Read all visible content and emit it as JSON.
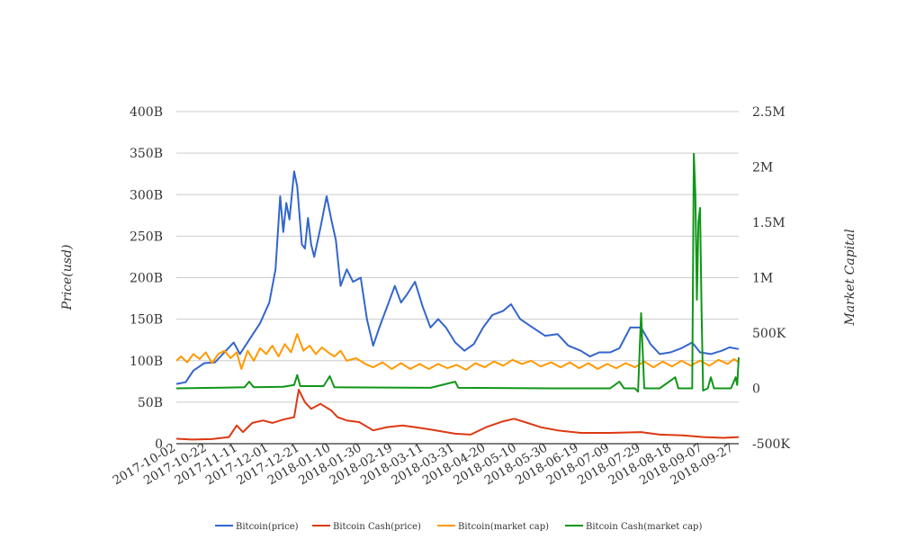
{
  "chart_data": {
    "type": "line",
    "ylabel_left": "Price(usd)",
    "ylabel_right": "Market Capital",
    "left_axis": {
      "range": [
        0,
        400000000000
      ],
      "ticks": [
        0,
        50000000000,
        100000000000,
        150000000000,
        200000000000,
        250000000000,
        300000000000,
        350000000000,
        400000000000
      ],
      "tick_labels": [
        "0",
        "50B",
        "100B",
        "150B",
        "200B",
        "250B",
        "300B",
        "350B",
        "400B"
      ]
    },
    "right_axis": {
      "range": [
        -500000,
        2500000
      ],
      "ticks": [
        -500000,
        0,
        500000,
        1000000,
        1500000,
        2000000,
        2500000
      ],
      "tick_labels": [
        "-500K",
        "0",
        "500K",
        "1M",
        "1.5M",
        "2M",
        "2.5M"
      ]
    },
    "x_tick_labels": [
      "2017-10-02",
      "2017-10-22",
      "2017-11-11",
      "2017-12-01",
      "2017-12-21",
      "2018-01-10",
      "2018-01-30",
      "2018-02-19",
      "2018-03-11",
      "2018-03-31",
      "2018-04-20",
      "2018-05-10",
      "2018-05-30",
      "2018-06-19",
      "2018-07-09",
      "2018-07-29",
      "2018-08-18",
      "2018-09-07",
      "2018-09-27"
    ],
    "x_range": [
      "2017-10-02",
      "2018-09-30"
    ],
    "grid": true,
    "legend_position": "bottom",
    "series": [
      {
        "name": "Bitcoin(price)",
        "color": "#3366cc",
        "axis": "left",
        "points": [
          [
            "2017-10-02",
            72000000000
          ],
          [
            "2017-10-08",
            74000000000
          ],
          [
            "2017-10-13",
            88000000000
          ],
          [
            "2017-10-20",
            97000000000
          ],
          [
            "2017-10-27",
            98000000000
          ],
          [
            "2017-11-02",
            110000000000
          ],
          [
            "2017-11-08",
            122000000000
          ],
          [
            "2017-11-12",
            108000000000
          ],
          [
            "2017-11-18",
            125000000000
          ],
          [
            "2017-11-25",
            145000000000
          ],
          [
            "2017-12-01",
            170000000000
          ],
          [
            "2017-12-05",
            210000000000
          ],
          [
            "2017-12-08",
            298000000000
          ],
          [
            "2017-12-10",
            255000000000
          ],
          [
            "2017-12-12",
            290000000000
          ],
          [
            "2017-12-14",
            270000000000
          ],
          [
            "2017-12-17",
            328000000000
          ],
          [
            "2017-12-19",
            310000000000
          ],
          [
            "2017-12-22",
            240000000000
          ],
          [
            "2017-12-24",
            235000000000
          ],
          [
            "2017-12-26",
            272000000000
          ],
          [
            "2017-12-28",
            240000000000
          ],
          [
            "2017-12-30",
            225000000000
          ],
          [
            "2018-01-03",
            260000000000
          ],
          [
            "2018-01-07",
            298000000000
          ],
          [
            "2018-01-10",
            270000000000
          ],
          [
            "2018-01-13",
            245000000000
          ],
          [
            "2018-01-16",
            190000000000
          ],
          [
            "2018-01-20",
            210000000000
          ],
          [
            "2018-01-24",
            195000000000
          ],
          [
            "2018-01-29",
            200000000000
          ],
          [
            "2018-02-02",
            150000000000
          ],
          [
            "2018-02-06",
            118000000000
          ],
          [
            "2018-02-10",
            140000000000
          ],
          [
            "2018-02-15",
            165000000000
          ],
          [
            "2018-02-20",
            190000000000
          ],
          [
            "2018-02-24",
            170000000000
          ],
          [
            "2018-02-28",
            180000000000
          ],
          [
            "2018-03-05",
            195000000000
          ],
          [
            "2018-03-10",
            165000000000
          ],
          [
            "2018-03-15",
            140000000000
          ],
          [
            "2018-03-20",
            150000000000
          ],
          [
            "2018-03-25",
            140000000000
          ],
          [
            "2018-03-31",
            122000000000
          ],
          [
            "2018-04-06",
            112000000000
          ],
          [
            "2018-04-12",
            120000000000
          ],
          [
            "2018-04-18",
            140000000000
          ],
          [
            "2018-04-24",
            155000000000
          ],
          [
            "2018-05-01",
            160000000000
          ],
          [
            "2018-05-06",
            168000000000
          ],
          [
            "2018-05-12",
            150000000000
          ],
          [
            "2018-05-20",
            140000000000
          ],
          [
            "2018-05-28",
            130000000000
          ],
          [
            "2018-06-05",
            132000000000
          ],
          [
            "2018-06-12",
            118000000000
          ],
          [
            "2018-06-20",
            112000000000
          ],
          [
            "2018-06-26",
            105000000000
          ],
          [
            "2018-07-02",
            110000000000
          ],
          [
            "2018-07-09",
            110000000000
          ],
          [
            "2018-07-15",
            115000000000
          ],
          [
            "2018-07-22",
            140000000000
          ],
          [
            "2018-07-29",
            140000000000
          ],
          [
            "2018-08-04",
            120000000000
          ],
          [
            "2018-08-10",
            108000000000
          ],
          [
            "2018-08-17",
            110000000000
          ],
          [
            "2018-08-24",
            115000000000
          ],
          [
            "2018-08-31",
            122000000000
          ],
          [
            "2018-09-05",
            110000000000
          ],
          [
            "2018-09-12",
            108000000000
          ],
          [
            "2018-09-19",
            112000000000
          ],
          [
            "2018-09-24",
            116000000000
          ],
          [
            "2018-09-30",
            114000000000
          ]
        ]
      },
      {
        "name": "Bitcoin Cash(price)",
        "color": "#dc3912",
        "axis": "left",
        "points": [
          [
            "2017-10-02",
            6000000000
          ],
          [
            "2017-10-12",
            5000000000
          ],
          [
            "2017-10-25",
            5500000000
          ],
          [
            "2017-11-05",
            8000000000
          ],
          [
            "2017-11-10",
            22000000000
          ],
          [
            "2017-11-14",
            14000000000
          ],
          [
            "2017-11-20",
            25000000000
          ],
          [
            "2017-11-27",
            28000000000
          ],
          [
            "2017-12-03",
            25000000000
          ],
          [
            "2017-12-10",
            29000000000
          ],
          [
            "2017-12-17",
            32000000000
          ],
          [
            "2017-12-20",
            65000000000
          ],
          [
            "2017-12-24",
            50000000000
          ],
          [
            "2017-12-28",
            42000000000
          ],
          [
            "2018-01-03",
            48000000000
          ],
          [
            "2018-01-10",
            40000000000
          ],
          [
            "2018-01-14",
            32000000000
          ],
          [
            "2018-01-20",
            28000000000
          ],
          [
            "2018-01-28",
            26000000000
          ],
          [
            "2018-02-06",
            16000000000
          ],
          [
            "2018-02-15",
            20000000000
          ],
          [
            "2018-02-25",
            22000000000
          ],
          [
            "2018-03-05",
            20000000000
          ],
          [
            "2018-03-15",
            17000000000
          ],
          [
            "2018-03-31",
            12000000000
          ],
          [
            "2018-04-10",
            11000000000
          ],
          [
            "2018-04-20",
            20000000000
          ],
          [
            "2018-05-01",
            27000000000
          ],
          [
            "2018-05-08",
            30000000000
          ],
          [
            "2018-05-15",
            26000000000
          ],
          [
            "2018-05-25",
            20000000000
          ],
          [
            "2018-06-05",
            16000000000
          ],
          [
            "2018-06-20",
            13000000000
          ],
          [
            "2018-07-09",
            13000000000
          ],
          [
            "2018-07-29",
            14000000000
          ],
          [
            "2018-08-10",
            11000000000
          ],
          [
            "2018-08-25",
            10000000000
          ],
          [
            "2018-09-07",
            8000000000
          ],
          [
            "2018-09-20",
            7000000000
          ],
          [
            "2018-09-30",
            8000000000
          ]
        ]
      },
      {
        "name": "Bitcoin(market cap)",
        "color": "#ff9900",
        "axis": "left",
        "points": [
          [
            "2017-10-02",
            100000000000
          ],
          [
            "2017-10-05",
            105000000000
          ],
          [
            "2017-10-09",
            98000000000
          ],
          [
            "2017-10-13",
            108000000000
          ],
          [
            "2017-10-17",
            102000000000
          ],
          [
            "2017-10-21",
            110000000000
          ],
          [
            "2017-10-25",
            97000000000
          ],
          [
            "2017-10-29",
            108000000000
          ],
          [
            "2017-11-02",
            112000000000
          ],
          [
            "2017-11-06",
            103000000000
          ],
          [
            "2017-11-10",
            110000000000
          ],
          [
            "2017-11-13",
            90000000000
          ],
          [
            "2017-11-17",
            112000000000
          ],
          [
            "2017-11-21",
            100000000000
          ],
          [
            "2017-11-25",
            115000000000
          ],
          [
            "2017-11-29",
            108000000000
          ],
          [
            "2017-12-03",
            118000000000
          ],
          [
            "2017-12-07",
            105000000000
          ],
          [
            "2017-12-11",
            120000000000
          ],
          [
            "2017-12-15",
            110000000000
          ],
          [
            "2017-12-19",
            132000000000
          ],
          [
            "2017-12-23",
            112000000000
          ],
          [
            "2017-12-27",
            118000000000
          ],
          [
            "2017-12-31",
            108000000000
          ],
          [
            "2018-01-04",
            116000000000
          ],
          [
            "2018-01-08",
            110000000000
          ],
          [
            "2018-01-12",
            105000000000
          ],
          [
            "2018-01-16",
            112000000000
          ],
          [
            "2018-01-20",
            100000000000
          ],
          [
            "2018-01-26",
            103000000000
          ],
          [
            "2018-02-01",
            96000000000
          ],
          [
            "2018-02-06",
            92000000000
          ],
          [
            "2018-02-12",
            98000000000
          ],
          [
            "2018-02-18",
            90000000000
          ],
          [
            "2018-02-24",
            97000000000
          ],
          [
            "2018-03-02",
            90000000000
          ],
          [
            "2018-03-08",
            96000000000
          ],
          [
            "2018-03-14",
            90000000000
          ],
          [
            "2018-03-20",
            96000000000
          ],
          [
            "2018-03-26",
            91000000000
          ],
          [
            "2018-04-01",
            95000000000
          ],
          [
            "2018-04-07",
            89000000000
          ],
          [
            "2018-04-13",
            97000000000
          ],
          [
            "2018-04-19",
            92000000000
          ],
          [
            "2018-04-25",
            99000000000
          ],
          [
            "2018-05-01",
            94000000000
          ],
          [
            "2018-05-07",
            101000000000
          ],
          [
            "2018-05-13",
            96000000000
          ],
          [
            "2018-05-19",
            100000000000
          ],
          [
            "2018-05-25",
            93000000000
          ],
          [
            "2018-06-01",
            98000000000
          ],
          [
            "2018-06-07",
            92000000000
          ],
          [
            "2018-06-13",
            98000000000
          ],
          [
            "2018-06-19",
            91000000000
          ],
          [
            "2018-06-25",
            97000000000
          ],
          [
            "2018-07-01",
            90000000000
          ],
          [
            "2018-07-07",
            96000000000
          ],
          [
            "2018-07-13",
            91000000000
          ],
          [
            "2018-07-19",
            97000000000
          ],
          [
            "2018-07-25",
            92000000000
          ],
          [
            "2018-07-31",
            99000000000
          ],
          [
            "2018-08-06",
            92000000000
          ],
          [
            "2018-08-12",
            99000000000
          ],
          [
            "2018-08-18",
            93000000000
          ],
          [
            "2018-08-24",
            100000000000
          ],
          [
            "2018-08-30",
            94000000000
          ],
          [
            "2018-09-05",
            100000000000
          ],
          [
            "2018-09-11",
            94000000000
          ],
          [
            "2018-09-17",
            101000000000
          ],
          [
            "2018-09-23",
            96000000000
          ],
          [
            "2018-09-27",
            102000000000
          ],
          [
            "2018-09-30",
            98000000000
          ]
        ]
      },
      {
        "name": "Bitcoin Cash(market cap)",
        "color": "#109618",
        "axis": "right",
        "points": [
          [
            "2017-10-02",
            0
          ],
          [
            "2017-11-15",
            10000
          ],
          [
            "2017-11-18",
            60000
          ],
          [
            "2017-11-21",
            10000
          ],
          [
            "2017-12-10",
            15000
          ],
          [
            "2017-12-17",
            30000
          ],
          [
            "2017-12-19",
            120000
          ],
          [
            "2017-12-21",
            20000
          ],
          [
            "2018-01-05",
            20000
          ],
          [
            "2018-01-09",
            110000
          ],
          [
            "2018-01-12",
            10000
          ],
          [
            "2018-03-15",
            5000
          ],
          [
            "2018-03-31",
            60000
          ],
          [
            "2018-04-02",
            5000
          ],
          [
            "2018-06-01",
            0
          ],
          [
            "2018-07-09",
            0
          ],
          [
            "2018-07-15",
            60000
          ],
          [
            "2018-07-18",
            0
          ],
          [
            "2018-07-25",
            0
          ],
          [
            "2018-07-27",
            -30000
          ],
          [
            "2018-07-29",
            680000
          ],
          [
            "2018-07-31",
            0
          ],
          [
            "2018-08-10",
            0
          ],
          [
            "2018-08-20",
            100000
          ],
          [
            "2018-08-22",
            0
          ],
          [
            "2018-08-31",
            0
          ],
          [
            "2018-09-01",
            2120000
          ],
          [
            "2018-09-02",
            1750000
          ],
          [
            "2018-09-03",
            800000
          ],
          [
            "2018-09-04",
            1500000
          ],
          [
            "2018-09-05",
            1630000
          ],
          [
            "2018-09-06",
            700000
          ],
          [
            "2018-09-07",
            -20000
          ],
          [
            "2018-09-10",
            0
          ],
          [
            "2018-09-12",
            100000
          ],
          [
            "2018-09-14",
            0
          ],
          [
            "2018-09-25",
            0
          ],
          [
            "2018-09-28",
            100000
          ],
          [
            "2018-09-29",
            30000
          ],
          [
            "2018-09-30",
            280000
          ]
        ]
      }
    ]
  }
}
